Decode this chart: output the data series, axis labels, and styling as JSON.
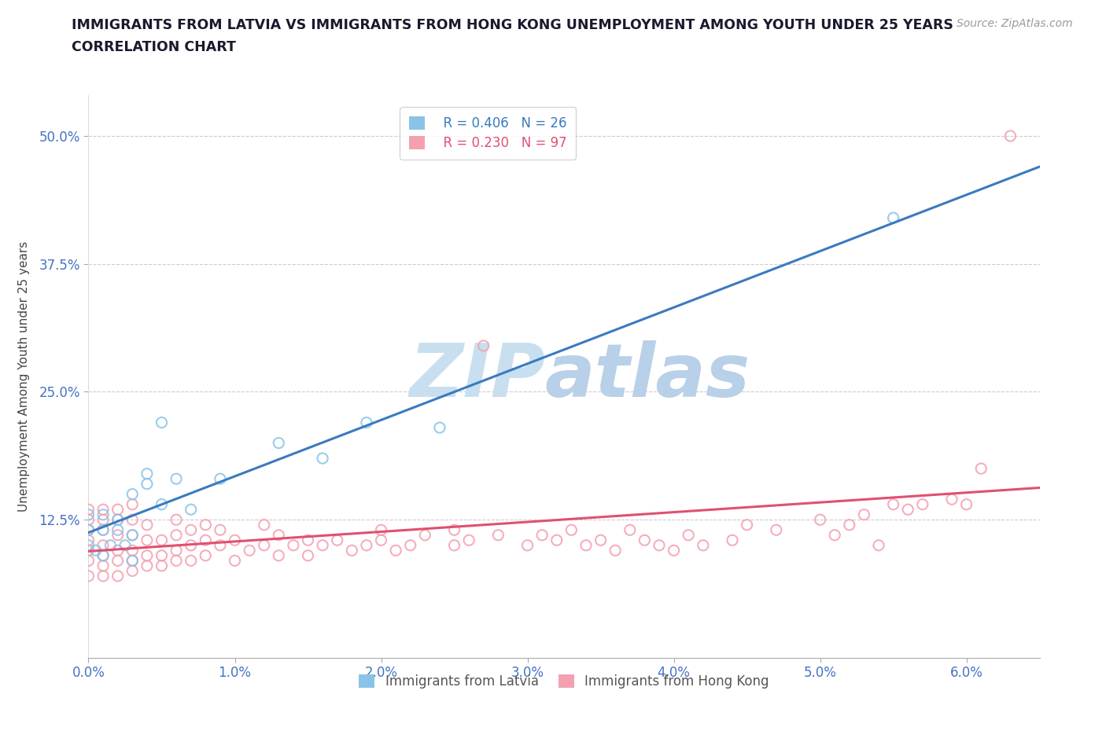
{
  "title_line1": "IMMIGRANTS FROM LATVIA VS IMMIGRANTS FROM HONG KONG UNEMPLOYMENT AMONG YOUTH UNDER 25 YEARS",
  "title_line2": "CORRELATION CHART",
  "source_text": "Source: ZipAtlas.com",
  "ylabel": "Unemployment Among Youth under 25 years",
  "xlim": [
    0.0,
    0.065
  ],
  "ylim": [
    -0.01,
    0.54
  ],
  "yticks": [
    0.125,
    0.25,
    0.375,
    0.5
  ],
  "ytick_labels": [
    "12.5%",
    "25.0%",
    "37.5%",
    "50.0%"
  ],
  "xticks": [
    0.0,
    0.01,
    0.02,
    0.03,
    0.04,
    0.05,
    0.06
  ],
  "xtick_labels": [
    "0.0%",
    "1.0%",
    "2.0%",
    "3.0%",
    "4.0%",
    "5.0%",
    "6.0%"
  ],
  "legend_blue_r": "R = 0.406",
  "legend_blue_n": "N = 26",
  "legend_pink_r": "R = 0.230",
  "legend_pink_n": "N = 97",
  "color_blue": "#89c4e8",
  "color_pink": "#f4a0b0",
  "color_trendline_blue": "#3a7abf",
  "color_trendline_pink": "#e05070",
  "watermark_zip": "ZIP",
  "watermark_atlas": "atlas",
  "watermark_color_zip": "#c8dff0",
  "watermark_color_atlas": "#b8d0e8",
  "tick_color": "#4472c4",
  "latvia_x": [
    0.0,
    0.0,
    0.0,
    0.0005,
    0.001,
    0.001,
    0.001,
    0.0015,
    0.002,
    0.002,
    0.0025,
    0.003,
    0.003,
    0.003,
    0.004,
    0.004,
    0.005,
    0.005,
    0.006,
    0.007,
    0.009,
    0.013,
    0.016,
    0.019,
    0.024,
    0.055
  ],
  "latvia_y": [
    0.1,
    0.115,
    0.13,
    0.095,
    0.09,
    0.115,
    0.13,
    0.1,
    0.115,
    0.125,
    0.1,
    0.11,
    0.15,
    0.085,
    0.16,
    0.17,
    0.14,
    0.22,
    0.165,
    0.135,
    0.165,
    0.2,
    0.185,
    0.22,
    0.215,
    0.42
  ],
  "hk_x": [
    0.0,
    0.0,
    0.0,
    0.0,
    0.0,
    0.0,
    0.0,
    0.001,
    0.001,
    0.001,
    0.001,
    0.001,
    0.001,
    0.001,
    0.002,
    0.002,
    0.002,
    0.002,
    0.002,
    0.002,
    0.003,
    0.003,
    0.003,
    0.003,
    0.003,
    0.003,
    0.004,
    0.004,
    0.004,
    0.004,
    0.005,
    0.005,
    0.005,
    0.006,
    0.006,
    0.006,
    0.006,
    0.007,
    0.007,
    0.007,
    0.008,
    0.008,
    0.008,
    0.009,
    0.009,
    0.01,
    0.01,
    0.011,
    0.012,
    0.012,
    0.013,
    0.013,
    0.014,
    0.015,
    0.015,
    0.016,
    0.017,
    0.018,
    0.019,
    0.02,
    0.02,
    0.021,
    0.022,
    0.023,
    0.025,
    0.025,
    0.026,
    0.027,
    0.028,
    0.03,
    0.031,
    0.032,
    0.033,
    0.034,
    0.035,
    0.036,
    0.037,
    0.038,
    0.039,
    0.04,
    0.041,
    0.042,
    0.044,
    0.045,
    0.047,
    0.05,
    0.051,
    0.052,
    0.053,
    0.054,
    0.055,
    0.056,
    0.057,
    0.059,
    0.06,
    0.061,
    0.063
  ],
  "hk_y": [
    0.07,
    0.085,
    0.095,
    0.105,
    0.115,
    0.125,
    0.135,
    0.07,
    0.08,
    0.09,
    0.1,
    0.115,
    0.125,
    0.135,
    0.07,
    0.085,
    0.095,
    0.11,
    0.125,
    0.135,
    0.075,
    0.085,
    0.095,
    0.11,
    0.125,
    0.14,
    0.08,
    0.09,
    0.105,
    0.12,
    0.08,
    0.09,
    0.105,
    0.085,
    0.095,
    0.11,
    0.125,
    0.085,
    0.1,
    0.115,
    0.09,
    0.105,
    0.12,
    0.1,
    0.115,
    0.085,
    0.105,
    0.095,
    0.1,
    0.12,
    0.09,
    0.11,
    0.1,
    0.09,
    0.105,
    0.1,
    0.105,
    0.095,
    0.1,
    0.105,
    0.115,
    0.095,
    0.1,
    0.11,
    0.1,
    0.115,
    0.105,
    0.295,
    0.11,
    0.1,
    0.11,
    0.105,
    0.115,
    0.1,
    0.105,
    0.095,
    0.115,
    0.105,
    0.1,
    0.095,
    0.11,
    0.1,
    0.105,
    0.12,
    0.115,
    0.125,
    0.11,
    0.12,
    0.13,
    0.1,
    0.14,
    0.135,
    0.14,
    0.145,
    0.14,
    0.175,
    0.5
  ]
}
